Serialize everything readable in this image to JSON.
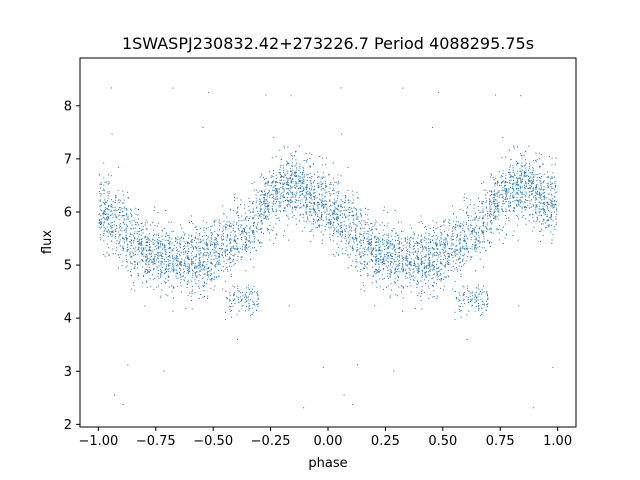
{
  "chart_data": {
    "type": "scatter",
    "title": "1SWASPJ230832.42+273226.7 Period 4088295.75s",
    "xlabel": "phase",
    "ylabel": "flux",
    "xlim": [
      -1.08,
      1.08
    ],
    "ylim": [
      1.95,
      8.9
    ],
    "xticks": [
      -1.0,
      -0.75,
      -0.5,
      -0.25,
      0.0,
      0.25,
      0.5,
      0.75,
      1.0
    ],
    "xtick_labels": [
      "−1.00",
      "−0.75",
      "−0.50",
      "−0.25",
      "0.00",
      "0.25",
      "0.50",
      "0.75",
      "1.00"
    ],
    "yticks": [
      2,
      3,
      4,
      5,
      6,
      7,
      8
    ],
    "ytick_labels": [
      "2",
      "3",
      "4",
      "5",
      "6",
      "7",
      "8"
    ],
    "grid": false,
    "series": [
      {
        "color": "#1f77b4",
        "description_points": "phase-folded light curve, points mirrored at phase and phase-1",
        "profile": [
          {
            "phase": 0.0,
            "flux": 6.1
          },
          {
            "phase": 0.05,
            "flux": 5.9
          },
          {
            "phase": 0.1,
            "flux": 5.7
          },
          {
            "phase": 0.15,
            "flux": 5.45
          },
          {
            "phase": 0.2,
            "flux": 5.3
          },
          {
            "phase": 0.25,
            "flux": 5.2
          },
          {
            "phase": 0.3,
            "flux": 5.15
          },
          {
            "phase": 0.35,
            "flux": 5.1
          },
          {
            "phase": 0.4,
            "flux": 5.05
          },
          {
            "phase": 0.45,
            "flux": 5.1
          },
          {
            "phase": 0.5,
            "flux": 5.2
          },
          {
            "phase": 0.55,
            "flux": 5.35
          },
          {
            "phase": 0.6,
            "flux": 5.5
          },
          {
            "phase": 0.65,
            "flux": 5.7
          },
          {
            "phase": 0.7,
            "flux": 5.9
          },
          {
            "phase": 0.75,
            "flux": 6.2
          },
          {
            "phase": 0.8,
            "flux": 6.4
          },
          {
            "phase": 0.85,
            "flux": 6.45
          },
          {
            "phase": 0.9,
            "flux": 6.4
          },
          {
            "phase": 0.95,
            "flux": 6.25
          },
          {
            "phase": 1.0,
            "flux": 6.1
          }
        ],
        "dip": {
          "phase_start": 0.55,
          "phase_end": 0.7,
          "flux": 4.35
        }
      }
    ]
  }
}
